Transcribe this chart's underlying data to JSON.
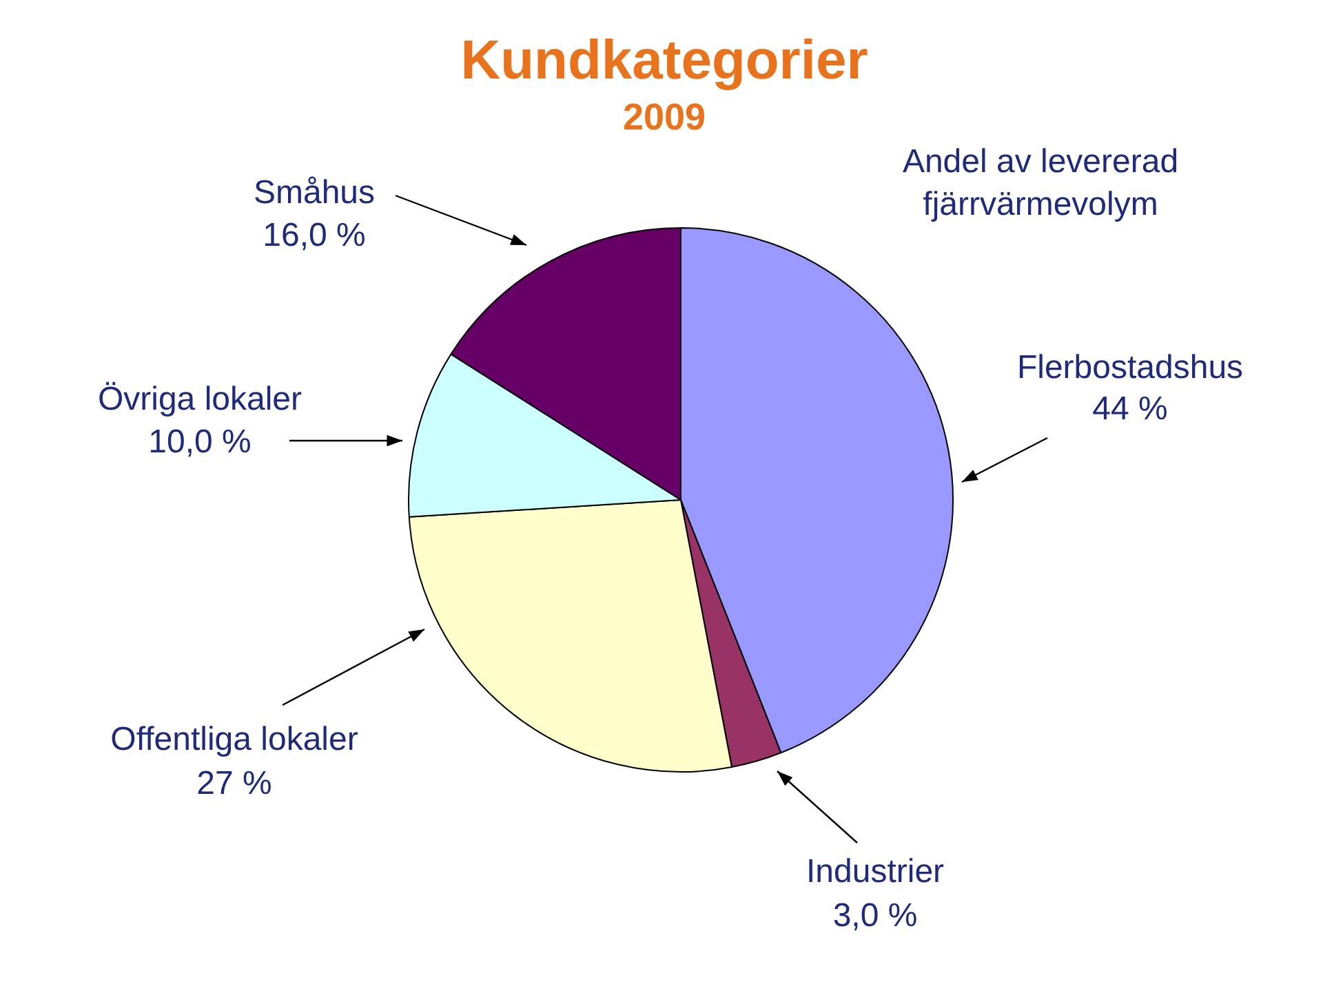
{
  "chart_data": {
    "type": "pie",
    "title": "Kundkategorier",
    "subtitle": "2009",
    "annotations": [
      "Andel av levererad fjärrvärmevolym"
    ],
    "categories": [
      "Flerbostadshus",
      "Industrier",
      "Offentliga lokaler",
      "Övriga lokaler",
      "Småhus"
    ],
    "values": [
      44,
      3.0,
      27,
      10.0,
      16.0
    ],
    "value_labels": [
      "44 %",
      "3,0 %",
      "27 %",
      "10,0 %",
      "16,0 %"
    ],
    "colors": [
      "#9999ff",
      "#993366",
      "#ffffcc",
      "#ccffff",
      "#660066"
    ]
  }
}
